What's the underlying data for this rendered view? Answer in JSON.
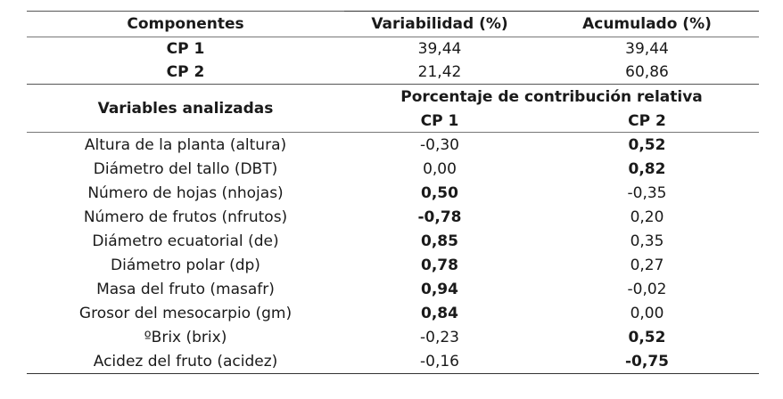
{
  "table": {
    "header": {
      "col1": "Componentes",
      "col2": "Variabilidad (%)",
      "col3": "Acumulado (%)"
    },
    "components": [
      {
        "name": "CP 1",
        "variability": "39,44",
        "accumulated": "39,44"
      },
      {
        "name": "CP 2",
        "variability": "21,42",
        "accumulated": "60,86"
      }
    ],
    "section2": {
      "variables_label": "Variables analizadas",
      "contribution_label": "Porcentaje de contribución relativa",
      "cp1_label": "CP 1",
      "cp2_label": "CP 2"
    },
    "variables": [
      {
        "name": "Altura de la planta (altura)",
        "cp1": "-0,30",
        "cp1_bold": false,
        "cp2": "0,52",
        "cp2_bold": true
      },
      {
        "name": "Diámetro del tallo (DBT)",
        "cp1": "0,00",
        "cp1_bold": false,
        "cp2": "0,82",
        "cp2_bold": true
      },
      {
        "name": "Número de hojas (nhojas)",
        "cp1": "0,50",
        "cp1_bold": true,
        "cp2": "-0,35",
        "cp2_bold": false
      },
      {
        "name": "Número de frutos (nfrutos)",
        "cp1": "-0,78",
        "cp1_bold": true,
        "cp2": "0,20",
        "cp2_bold": false
      },
      {
        "name": "Diámetro ecuatorial (de)",
        "cp1": "0,85",
        "cp1_bold": true,
        "cp2": "0,35",
        "cp2_bold": false
      },
      {
        "name": "Diámetro polar (dp)",
        "cp1": "0,78",
        "cp1_bold": true,
        "cp2": "0,27",
        "cp2_bold": false
      },
      {
        "name": "Masa del fruto (masafr)",
        "cp1": "0,94",
        "cp1_bold": true,
        "cp2": "-0,02",
        "cp2_bold": false
      },
      {
        "name": "Grosor del mesocarpio (gm)",
        "cp1": "0,84",
        "cp1_bold": true,
        "cp2": "0,00",
        "cp2_bold": false
      },
      {
        "name": "ºBrix (brix)",
        "cp1": "-0,23",
        "cp1_bold": false,
        "cp2": "0,52",
        "cp2_bold": true
      },
      {
        "name": "Acidez del fruto (acidez)",
        "cp1": "-0,16",
        "cp1_bold": false,
        "cp2": "-0,75",
        "cp2_bold": true
      }
    ]
  }
}
